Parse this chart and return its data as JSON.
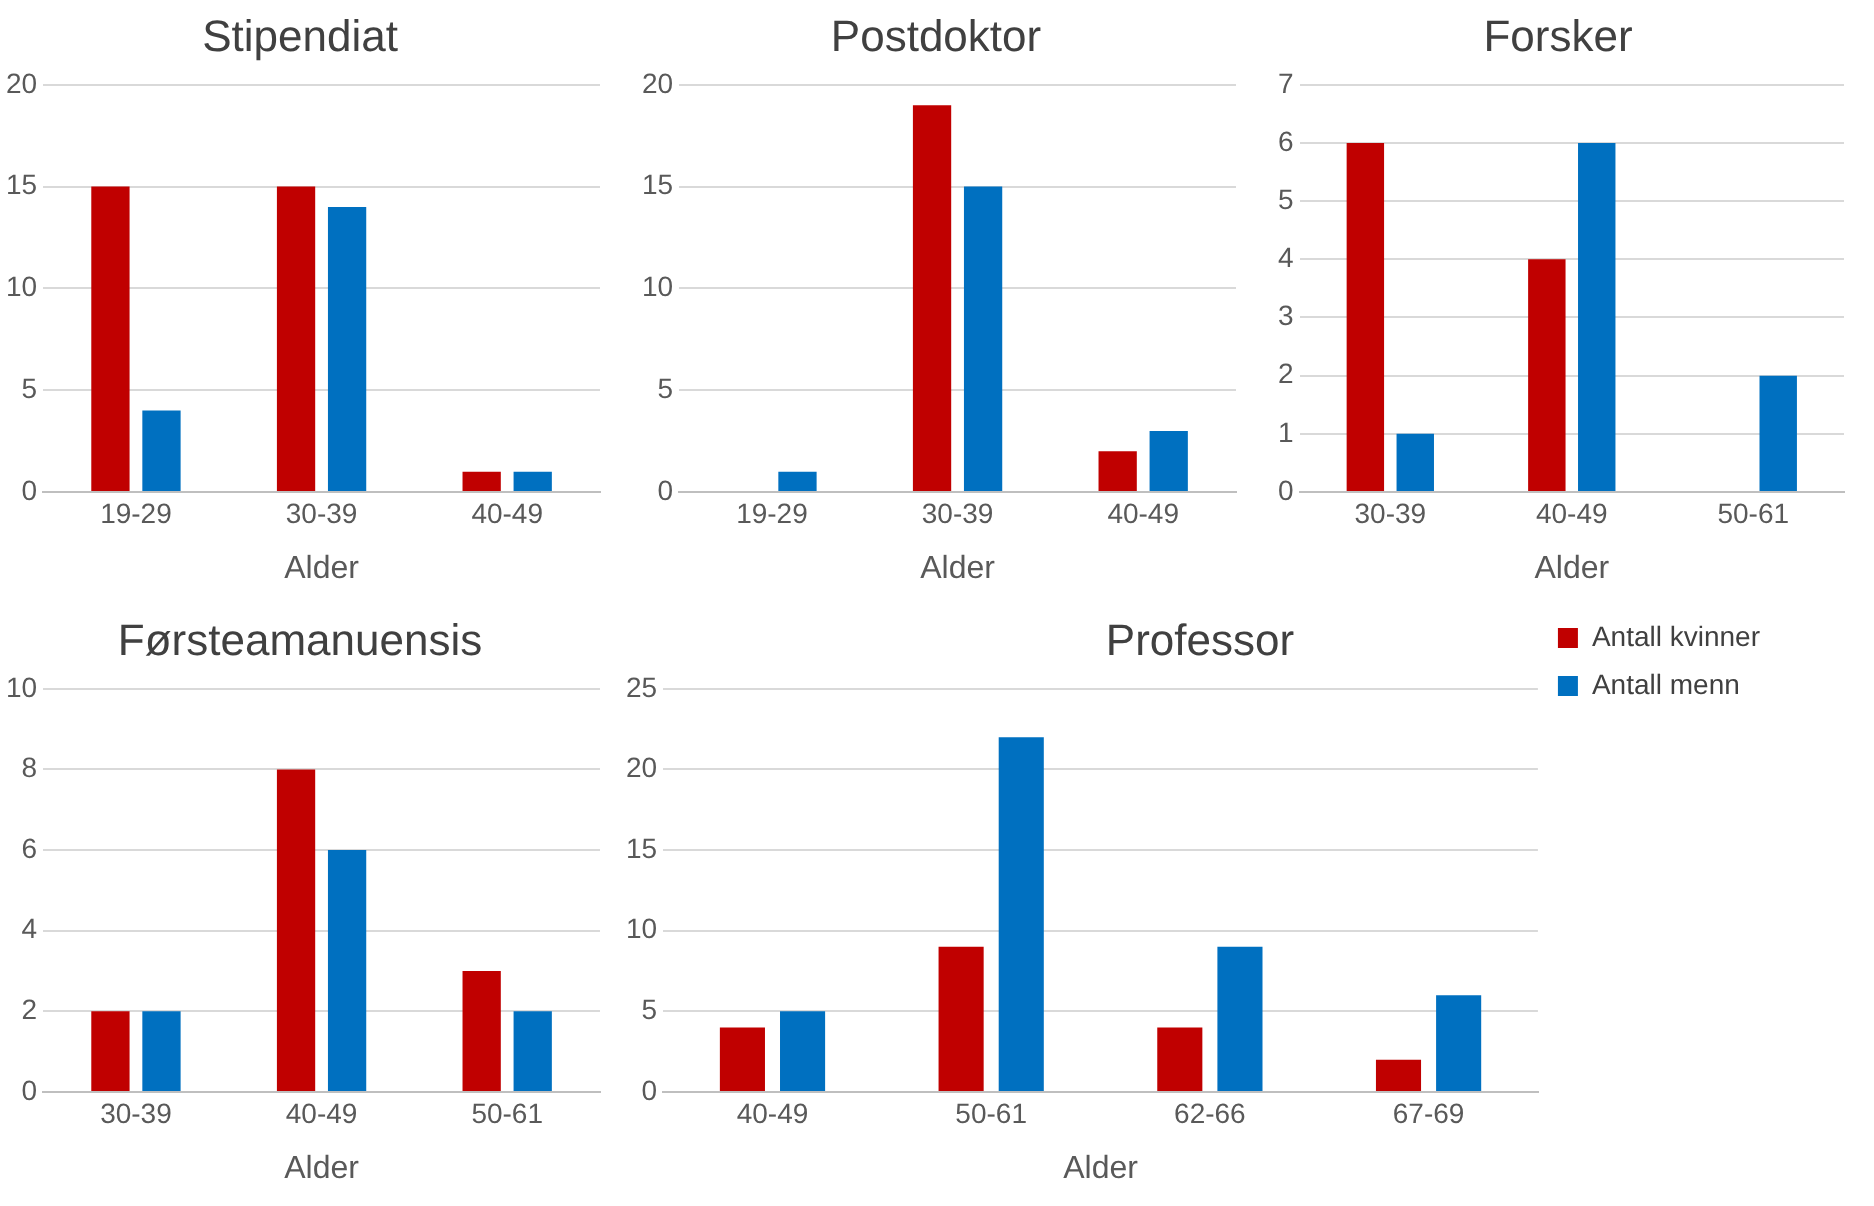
{
  "chart_data": [
    {
      "type": "bar",
      "title": "Stipendiat",
      "xlabel": "Alder",
      "categories": [
        "19-29",
        "30-39",
        "40-49"
      ],
      "series": [
        {
          "color": "#c00000",
          "values": [
            15,
            15,
            1
          ]
        },
        {
          "color": "#0070c0",
          "values": [
            4,
            14,
            1
          ]
        }
      ],
      "ylim": [
        0,
        20
      ],
      "yticks": [
        0,
        5,
        10,
        15,
        20
      ],
      "grid": "y",
      "legend": false
    },
    {
      "type": "bar",
      "title": "Postdoktor",
      "xlabel": "Alder",
      "categories": [
        "19-29",
        "30-39",
        "40-49"
      ],
      "series": [
        {
          "color": "#c00000",
          "values": [
            0,
            19,
            2
          ]
        },
        {
          "color": "#0070c0",
          "values": [
            1,
            15,
            3
          ]
        }
      ],
      "ylim": [
        0,
        20
      ],
      "yticks": [
        0,
        5,
        10,
        15,
        20
      ],
      "grid": "y",
      "legend": false
    },
    {
      "type": "bar",
      "title": "Forsker",
      "xlabel": "Alder",
      "categories": [
        "30-39",
        "40-49",
        "50-61"
      ],
      "series": [
        {
          "color": "#c00000",
          "values": [
            6,
            4,
            0
          ]
        },
        {
          "color": "#0070c0",
          "values": [
            1,
            6,
            2
          ]
        }
      ],
      "ylim": [
        0,
        7
      ],
      "yticks": [
        0,
        1,
        2,
        3,
        4,
        5,
        6,
        7
      ],
      "grid": "y",
      "legend": false
    },
    {
      "type": "bar",
      "title": "Førsteamanuensis",
      "xlabel": "Alder",
      "categories": [
        "30-39",
        "40-49",
        "50-61"
      ],
      "series": [
        {
          "color": "#c00000",
          "values": [
            2,
            8,
            3
          ]
        },
        {
          "color": "#0070c0",
          "values": [
            2,
            6,
            2
          ]
        }
      ],
      "ylim": [
        0,
        10
      ],
      "yticks": [
        0,
        2,
        4,
        6,
        8,
        10
      ],
      "grid": "y",
      "legend": false
    },
    {
      "type": "bar",
      "title": "Professor",
      "xlabel": "Alder",
      "categories": [
        "40-49",
        "50-61",
        "62-66",
        "67-69"
      ],
      "series": [
        {
          "name": "Antall kvinner",
          "color": "#c00000",
          "values": [
            4,
            9,
            4,
            2
          ]
        },
        {
          "name": "Antall menn",
          "color": "#0070c0",
          "values": [
            5,
            22,
            9,
            6
          ]
        }
      ],
      "ylim": [
        0,
        25
      ],
      "yticks": [
        0,
        5,
        10,
        15,
        20,
        25
      ],
      "grid": "y",
      "legend": "right"
    }
  ]
}
